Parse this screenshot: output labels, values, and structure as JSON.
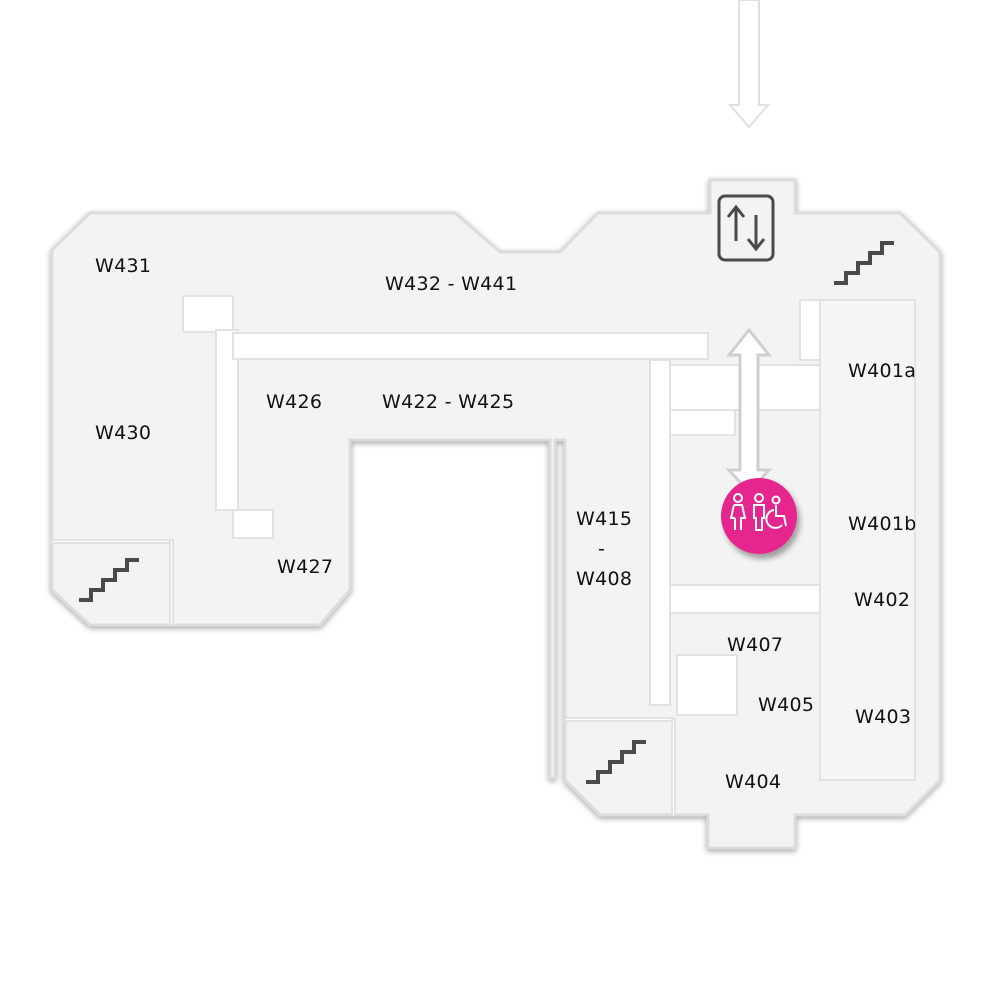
{
  "rooms": {
    "w431": "W431",
    "w432_441": "W432 - W441",
    "w430": "W430",
    "w426": "W426",
    "w422_425": "W422 - W425",
    "w427": "W427",
    "w415_408_top": "W415",
    "w415_408_dash": "-",
    "w415_408_bottom": "W408",
    "w401a": "W401a",
    "w401b": "W401b",
    "w402": "W402",
    "w407": "W407",
    "w405": "W405",
    "w403": "W403",
    "w404": "W404"
  },
  "icons": {
    "stairs": "stairs-icon",
    "elevator": "elevator-icon",
    "toilet": "restroom-accessible-icon",
    "arrow": "arrow-icon"
  },
  "colors": {
    "floor": "#f3f3f3",
    "wall": "#d8d8d8",
    "icon": "#4a4a4a",
    "toilet_badge": "#e6278f"
  }
}
